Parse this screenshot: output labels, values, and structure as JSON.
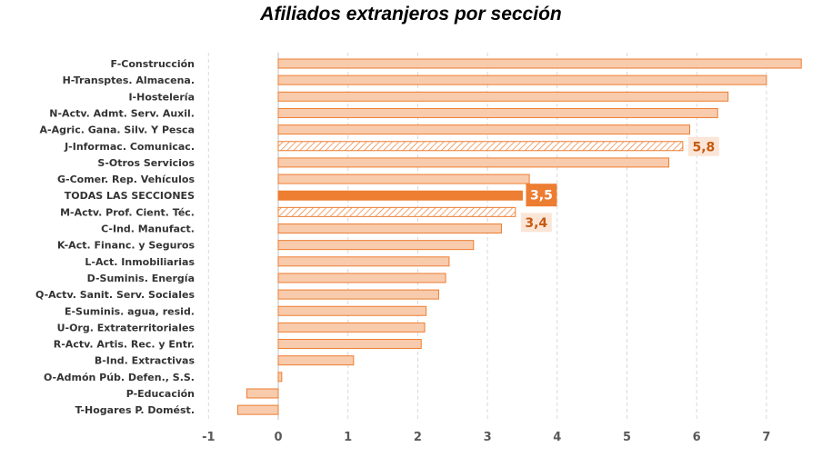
{
  "chart_data": {
    "type": "bar",
    "orientation": "horizontal",
    "title": "Afiliados extranjeros por sección",
    "xlim": [
      -1,
      7.6
    ],
    "xticks": [
      -1,
      0,
      1,
      2,
      3,
      4,
      5,
      6,
      7
    ],
    "grid": true,
    "colors": {
      "bar_fill": "#f8cbad",
      "bar_edge": "#ed7d31",
      "highlight_fill": "#ed7d31",
      "label_text": "#c55a11",
      "label_bg": "#fbe5d6",
      "grid": "#d9d9d9"
    },
    "categories": [
      "F-Construcción",
      "H-Transptes. Almacena.",
      "I-Hostelería",
      "N-Actv. Admt. Serv. Auxil.",
      "A-Agric. Gana. Silv. Y Pesca",
      "J-Informac. Comunicac.",
      "S-Otros Servicios",
      "G-Comer. Rep. Vehículos",
      "TODAS LAS SECCIONES",
      "M-Actv. Prof. Cient. Téc.",
      "C-Ind. Manufact.",
      "K-Act. Financ. y Seguros",
      "L-Act. Inmobiliarias",
      "D-Suminis. Energía",
      "Q-Actv. Sanit. Serv. Sociales",
      "E-Suminis. agua, resid.",
      "U-Org. Extraterritoriales",
      "R-Actv. Artis. Rec. y Entr.",
      "B-Ind. Extractivas",
      "O-Admón Púb. Defen., S.S.",
      "P-Educación",
      "T-Hogares P. Domést."
    ],
    "values": [
      7.5,
      7.0,
      6.45,
      6.3,
      5.9,
      5.8,
      5.6,
      3.6,
      3.5,
      3.4,
      3.2,
      2.8,
      2.45,
      2.4,
      2.3,
      2.12,
      2.1,
      2.05,
      1.08,
      0.05,
      -0.45,
      -0.58
    ],
    "styles": [
      "normal",
      "normal",
      "normal",
      "normal",
      "normal",
      "hatched",
      "normal",
      "normal",
      "highlight",
      "hatched",
      "normal",
      "normal",
      "normal",
      "normal",
      "normal",
      "normal",
      "normal",
      "normal",
      "normal",
      "normal",
      "normal",
      "normal"
    ],
    "data_labels": [
      {
        "category": "J-Informac. Comunicac.",
        "text": "5,8",
        "style": "light"
      },
      {
        "category": "TODAS LAS SECCIONES",
        "text": "3,5",
        "style": "dark"
      },
      {
        "category": "M-Actv. Prof. Cient. Téc.",
        "text": "3,4",
        "style": "light"
      }
    ]
  }
}
